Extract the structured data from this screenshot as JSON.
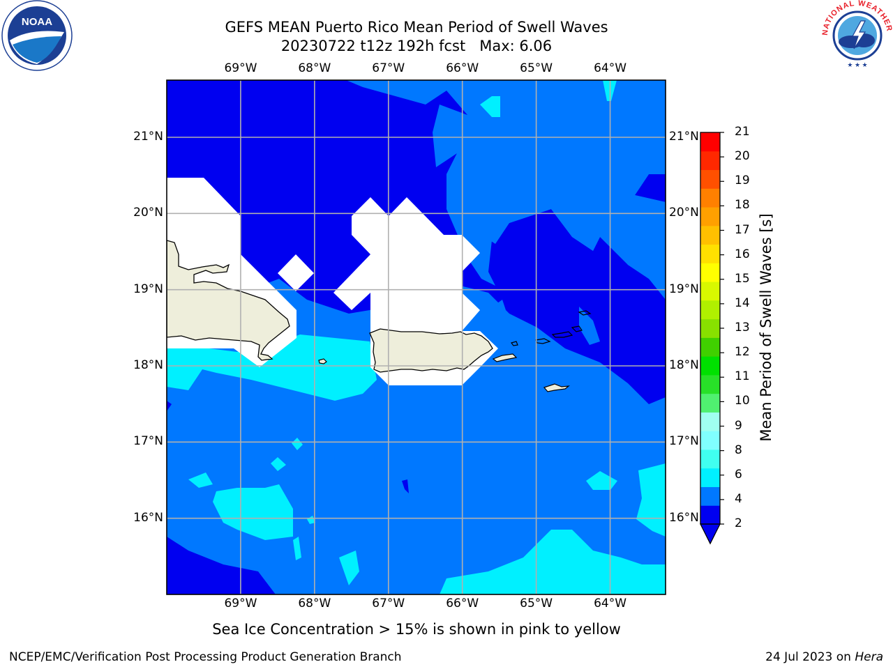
{
  "title": {
    "line1": "GEFS MEAN Puerto Rico Mean Period of Swell Waves",
    "line2": "20230722 t12z 192h fcst   Max: 6.06"
  },
  "map": {
    "lon_ticks": [
      "69°W",
      "68°W",
      "67°W",
      "66°W",
      "65°W",
      "64°W"
    ],
    "lat_ticks": [
      "21°N",
      "20°N",
      "19°N",
      "18°N",
      "17°N",
      "16°N"
    ],
    "extent": {
      "lon": [
        -70.0,
        -63.25
      ],
      "lat": [
        15.0,
        21.75
      ]
    },
    "land_color": "#eeeedb",
    "masked_color": "#ffffff"
  },
  "colorbar": {
    "title": "Mean Period of Swell Waves [s]",
    "ticks": [
      "21",
      "20",
      "19",
      "18",
      "17",
      "16",
      "15",
      "14",
      "13",
      "12",
      "11",
      "10",
      "9",
      "8",
      "6",
      "4",
      "2"
    ],
    "colors": [
      "#0000f0",
      "#0078ff",
      "#00f0ff",
      "#40fff0",
      "#80ffff",
      "#a0fff0",
      "#50f070",
      "#28e028",
      "#00e000",
      "#40d000",
      "#88e000",
      "#b0f000",
      "#d8f800",
      "#ffff00",
      "#ffe000",
      "#ffc000",
      "#ffa000",
      "#ff8000",
      "#ff5000",
      "#ff2800",
      "#ff0000"
    ],
    "extend": "min"
  },
  "note": "Sea Ice Concentration > 15% is shown in pink to yellow",
  "footer": {
    "left": "NCEP/EMC/Verification Post Processing Product Generation Branch",
    "date": "24 Jul 2023 on ",
    "machine": "Hera"
  },
  "logos": {
    "noaa_text": "NOAA",
    "nws_text": "NATIONAL WEATHER SERVICE"
  }
}
